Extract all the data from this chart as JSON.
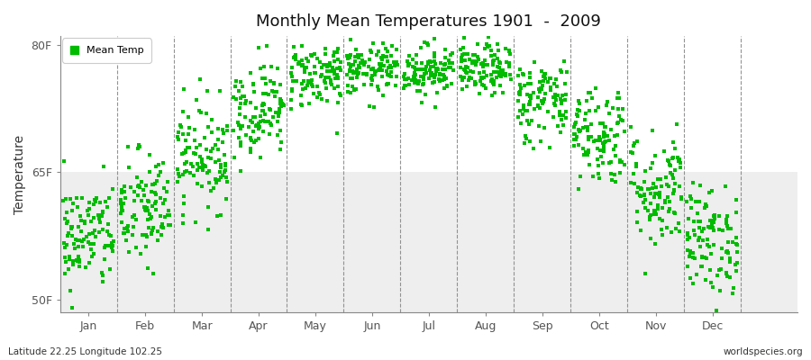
{
  "title": "Monthly Mean Temperatures 1901  -  2009",
  "ylabel": "Temperature",
  "ytick_labels": [
    "50F",
    "65F",
    "80F"
  ],
  "ytick_values": [
    50,
    65,
    80
  ],
  "ylim": [
    48.5,
    81
  ],
  "xlim": [
    0,
    13
  ],
  "xtick_labels": [
    "Jan",
    "Feb",
    "Mar",
    "Apr",
    "May",
    "Jun",
    "Jul",
    "Aug",
    "Sep",
    "Oct",
    "Nov",
    "Dec"
  ],
  "xtick_positions": [
    0.5,
    1.5,
    2.5,
    3.5,
    4.5,
    5.5,
    6.5,
    7.5,
    8.5,
    9.5,
    10.5,
    11.5
  ],
  "vline_positions": [
    1,
    2,
    3,
    4,
    5,
    6,
    7,
    8,
    9,
    10,
    11,
    12
  ],
  "dot_color": "#00bb00",
  "dot_size": 6,
  "plot_bg_color": "#ffffff",
  "fig_bg_color": "#ffffff",
  "legend_label": "Mean Temp",
  "bottom_left_text": "Latitude 22.25 Longitude 102.25",
  "bottom_right_text": "worldspecies.org",
  "monthly_means": [
    57.5,
    60.5,
    67.0,
    72.5,
    76.5,
    77.0,
    77.0,
    77.0,
    73.5,
    69.5,
    63.0,
    57.0
  ],
  "monthly_stds": [
    3.2,
    3.5,
    3.2,
    2.8,
    2.0,
    1.5,
    1.5,
    1.5,
    2.5,
    3.0,
    3.5,
    3.2
  ],
  "n_years": 109,
  "seed": 42,
  "band_color": "#eeeeee",
  "band_ylim": [
    48.5,
    65
  ]
}
